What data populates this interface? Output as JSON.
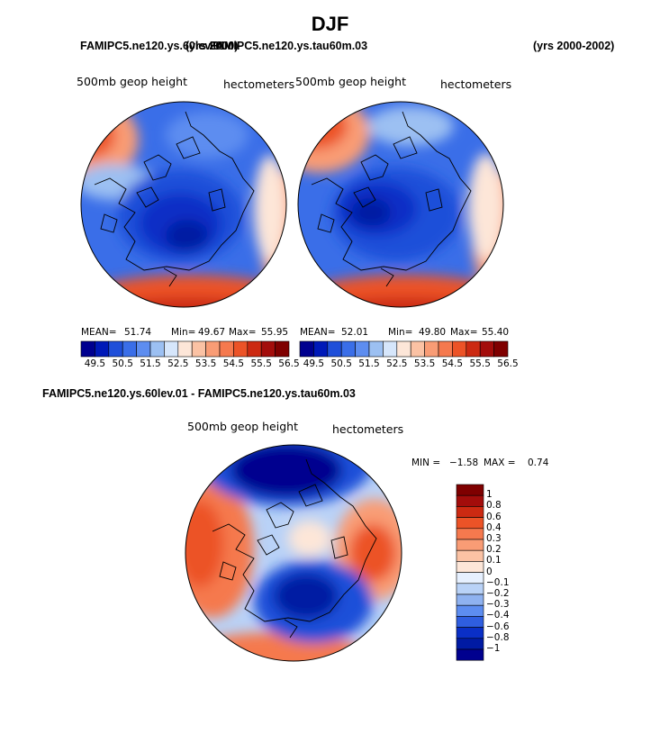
{
  "page": {
    "title": "DJF",
    "top_left_header": "FAMIPC5.ne120.ys.60lev.01",
    "top_right_header_overlap": "FAMIPC5.ne120.ys.tau60m.03",
    "overlap_mid": "(yrs 2000)",
    "years_label": "(yrs 2000-2002)",
    "diff_title": "FAMIPC5.ne120.ys.60lev.01 - FAMIPC5.ne120.ys.tau60m.03"
  },
  "colors": {
    "blue_dark": "#00008f",
    "blue": "#1f4fd9",
    "light_blue": "#9cc0f2",
    "white": "#f4f8ff",
    "orange": "#ff6a33",
    "red_dark": "#7f0000",
    "outline": "#000000"
  },
  "chart_data": [
    {
      "type": "heatmap",
      "name": "left-polar-map",
      "variable_label": "500mb geop height",
      "units_label": "hectometers",
      "mean_label": "MEAN=",
      "mean": "51.74",
      "min_label": "Min=",
      "min": "49.67",
      "max_label": "Max=",
      "max": "55.95",
      "colorbar_ticks": [
        "49.5",
        "50.5",
        "51.5",
        "52.5",
        "53.5",
        "54.5",
        "55.5",
        "56.5"
      ],
      "colorbar_colors": [
        "#00008f",
        "#0019b8",
        "#1f4fd9",
        "#3a6ee8",
        "#5d8df0",
        "#9cc0f2",
        "#d6e6fb",
        "#fde6d8",
        "#fbc2a4",
        "#f99c75",
        "#f5794e",
        "#ec5327",
        "#cc2a12",
        "#a30d0b",
        "#7f0000"
      ]
    },
    {
      "type": "heatmap",
      "name": "right-polar-map",
      "variable_label": "500mb geop height",
      "units_label": "hectometers",
      "mean_label": "MEAN=",
      "mean": "52.01",
      "min_label": "Min=",
      "min": "49.80",
      "max_label": "Max=",
      "max": "55.40",
      "colorbar_ticks": [
        "49.5",
        "50.5",
        "51.5",
        "52.5",
        "53.5",
        "54.5",
        "55.5",
        "56.5"
      ],
      "colorbar_colors": [
        "#00008f",
        "#0019b8",
        "#1f4fd9",
        "#3a6ee8",
        "#5d8df0",
        "#9cc0f2",
        "#d6e6fb",
        "#fde6d8",
        "#fbc2a4",
        "#f99c75",
        "#f5794e",
        "#ec5327",
        "#cc2a12",
        "#a30d0b",
        "#7f0000"
      ]
    },
    {
      "type": "heatmap",
      "name": "difference-polar-map",
      "variable_label": "500mb geop height",
      "units_label": "hectometers",
      "min_label": "MIN =",
      "min": "−1.58",
      "max_label": "MAX =",
      "max": "0.74",
      "colorbar_ticks": [
        "1",
        "0.8",
        "0.6",
        "0.4",
        "0.3",
        "0.2",
        "0.1",
        "0",
        "−0.1",
        "−0.2",
        "−0.3",
        "−0.4",
        "−0.6",
        "−0.8",
        "−1"
      ],
      "colorbar_colors": [
        "#7f0000",
        "#a30d0b",
        "#cc2a12",
        "#ec5327",
        "#f5794e",
        "#f99c75",
        "#fbc2a4",
        "#fde6d8",
        "#e6f0ff",
        "#b9d2f7",
        "#8fb2f0",
        "#5d8df0",
        "#2f5ee0",
        "#0a2fc6",
        "#001aa3",
        "#00008f"
      ]
    }
  ]
}
